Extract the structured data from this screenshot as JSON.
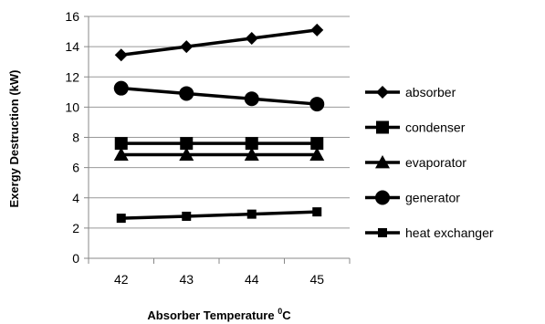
{
  "chart_data": {
    "type": "line",
    "title": "",
    "xlabel": "Absorber Temperature",
    "xlabel_sup": "0",
    "xlabel_unit": "C",
    "ylabel": "Exergy Destruction (kW)",
    "x": [
      42,
      43,
      44,
      45
    ],
    "xticks": [
      "42",
      "43",
      "44",
      "45"
    ],
    "yticks": [
      "0",
      "2",
      "4",
      "6",
      "8",
      "10",
      "12",
      "14",
      "16"
    ],
    "ylim": [
      0,
      16
    ],
    "grid": "horizontal",
    "legend": "right",
    "series": [
      {
        "name": "absorber",
        "marker": "diamond",
        "values": [
          13.45,
          14.0,
          14.55,
          15.1
        ]
      },
      {
        "name": "condenser",
        "marker": "square",
        "values": [
          7.6,
          7.6,
          7.6,
          7.6
        ]
      },
      {
        "name": "evaporator",
        "marker": "triangle",
        "values": [
          6.85,
          6.85,
          6.85,
          6.85
        ]
      },
      {
        "name": "generator",
        "marker": "circle",
        "values": [
          11.25,
          10.9,
          10.55,
          10.2
        ]
      },
      {
        "name": "heat exchanger",
        "marker": "x-square",
        "values": [
          2.65,
          2.78,
          2.92,
          3.07
        ]
      }
    ],
    "line_color": "#000000",
    "grid_color": "#999999"
  }
}
